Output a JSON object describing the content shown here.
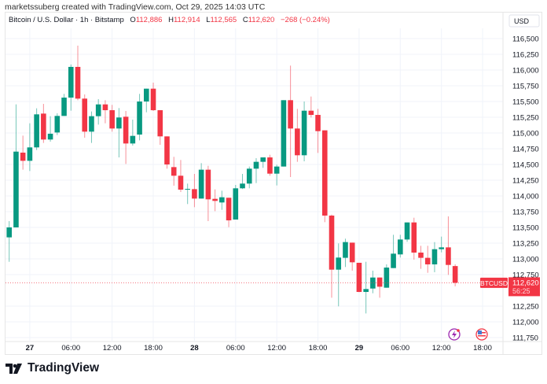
{
  "credit": "marketssuberg created with TradingView.com, Oct 29, 2025 14:03 UTC",
  "legend": {
    "symbol": "Bitcoin / U.S. Dollar · 1h · Bitstamp",
    "o_label": "O",
    "o": "112,886",
    "h_label": "H",
    "h": "112,914",
    "l_label": "L",
    "l": "112,565",
    "c_label": "C",
    "c": "112,620",
    "change": "−268 (−0.24%)"
  },
  "currency": "USD",
  "ticker_tag": "BTCUSD",
  "last_price": "112,620",
  "countdown": "56:25",
  "brand": "TradingView",
  "colors": {
    "up": "#089981",
    "down": "#f23645",
    "grid": "#f0f3fa",
    "text": "#131722"
  },
  "icons": [
    "tradingview-logo-icon",
    "crypto-event-icon",
    "us-flag-event-icon"
  ],
  "chart_data": {
    "type": "candlestick",
    "title": "Bitcoin / U.S. Dollar · 1h · Bitstamp",
    "interval": "1h",
    "first_candle": "Oct 26 21:00",
    "ylim": [
      111700,
      116900
    ],
    "grid": true,
    "y_ticks": [
      116500,
      116250,
      116000,
      115750,
      115500,
      115250,
      115000,
      114750,
      114500,
      114250,
      114000,
      113750,
      113500,
      113250,
      113000,
      112750,
      112250,
      112000,
      111750
    ],
    "x_ticks": [
      {
        "label": "27",
        "bar": 3,
        "bold": true
      },
      {
        "label": "06:00",
        "bar": 9
      },
      {
        "label": "12:00",
        "bar": 15
      },
      {
        "label": "18:00",
        "bar": 21
      },
      {
        "label": "28",
        "bar": 27,
        "bold": true
      },
      {
        "label": "06:00",
        "bar": 33
      },
      {
        "label": "12:00",
        "bar": 39
      },
      {
        "label": "18:00",
        "bar": 45
      },
      {
        "label": "29",
        "bar": 51,
        "bold": true
      },
      {
        "label": "06:00",
        "bar": 57
      },
      {
        "label": "12:00",
        "bar": 63
      },
      {
        "label": "18:00",
        "bar": 69
      }
    ],
    "ohlc": [
      [
        113342,
        113600,
        112954,
        113500
      ],
      [
        113500,
        115454,
        113500,
        114704
      ],
      [
        114688,
        114958,
        114417,
        114558
      ],
      [
        114558,
        115154,
        114396,
        114771
      ],
      [
        114771,
        115392,
        114729,
        115296
      ],
      [
        115308,
        115462,
        114842,
        114896
      ],
      [
        114896,
        115267,
        114862,
        114988
      ],
      [
        115008,
        115312,
        114967,
        115271
      ],
      [
        115271,
        115621,
        115271,
        115562
      ],
      [
        115562,
        116088,
        115354,
        116050
      ],
      [
        116050,
        116388,
        115521,
        115546
      ],
      [
        115546,
        115612,
        114925,
        115021
      ],
      [
        115021,
        115342,
        114842,
        115267
      ],
      [
        115267,
        115538,
        115133,
        115454
      ],
      [
        115454,
        115521,
        115154,
        115362
      ],
      [
        115362,
        115446,
        115021,
        115071
      ],
      [
        115071,
        115396,
        114612,
        115246
      ],
      [
        115258,
        115350,
        114508,
        114833
      ],
      [
        114833,
        115213,
        114800,
        114954
      ],
      [
        114975,
        115621,
        114883,
        115500
      ],
      [
        115500,
        115704,
        115329,
        115704
      ],
      [
        115704,
        115800,
        115350,
        115362
      ],
      [
        115362,
        115362,
        114812,
        114946
      ],
      [
        114946,
        114946,
        114433,
        114500
      ],
      [
        114458,
        114621,
        114163,
        114321
      ],
      [
        114321,
        114571,
        114062,
        114100
      ],
      [
        114100,
        114196,
        113871,
        114112
      ],
      [
        114108,
        114350,
        113821,
        113958
      ],
      [
        113958,
        114521,
        113958,
        114417
      ],
      [
        114417,
        114479,
        113600,
        113946
      ],
      [
        113954,
        114104,
        113758,
        113921
      ],
      [
        113896,
        114083,
        113779,
        113979
      ],
      [
        113971,
        113971,
        113504,
        113612
      ],
      [
        113625,
        114175,
        113625,
        114121
      ],
      [
        114121,
        114350,
        114110,
        114196
      ],
      [
        114196,
        114467,
        114121,
        114433
      ],
      [
        114433,
        114600,
        114204,
        114542
      ],
      [
        114542,
        114612,
        114446,
        114612
      ],
      [
        114612,
        114654,
        114321,
        114354
      ],
      [
        114354,
        114496,
        114167,
        114467
      ],
      [
        114467,
        115521,
        114467,
        115521
      ],
      [
        115521,
        116071,
        114300,
        115071
      ],
      [
        115071,
        115383,
        114542,
        114646
      ],
      [
        114646,
        115500,
        114550,
        115354
      ],
      [
        115354,
        115579,
        115246,
        115287
      ],
      [
        115287,
        115383,
        114683,
        115029
      ],
      [
        115042,
        115042,
        113583,
        113688
      ],
      [
        113688,
        113704,
        112383,
        112829
      ],
      [
        112829,
        113246,
        112246,
        113021
      ],
      [
        113017,
        113321,
        112871,
        113267
      ],
      [
        113258,
        113258,
        112813,
        112946
      ],
      [
        112938,
        112938,
        112470,
        112475
      ],
      [
        112475,
        112954,
        112133,
        112521
      ],
      [
        112529,
        112813,
        112454,
        112704
      ],
      [
        112704,
        112704,
        112383,
        112558
      ],
      [
        112542,
        112913,
        112542,
        112862
      ],
      [
        112854,
        113383,
        112854,
        113083
      ],
      [
        113071,
        113383,
        113021,
        113308
      ],
      [
        113308,
        113579,
        113271,
        113579
      ],
      [
        113579,
        113654,
        112988,
        113100
      ],
      [
        113100,
        113208,
        112842,
        113017
      ],
      [
        113017,
        113208,
        112779,
        112913
      ],
      [
        112913,
        113267,
        112788,
        113154
      ],
      [
        113154,
        113354,
        113104,
        113183
      ],
      [
        113183,
        113675,
        112746,
        112904
      ],
      [
        112886,
        112914,
        112565,
        112620
      ]
    ]
  }
}
